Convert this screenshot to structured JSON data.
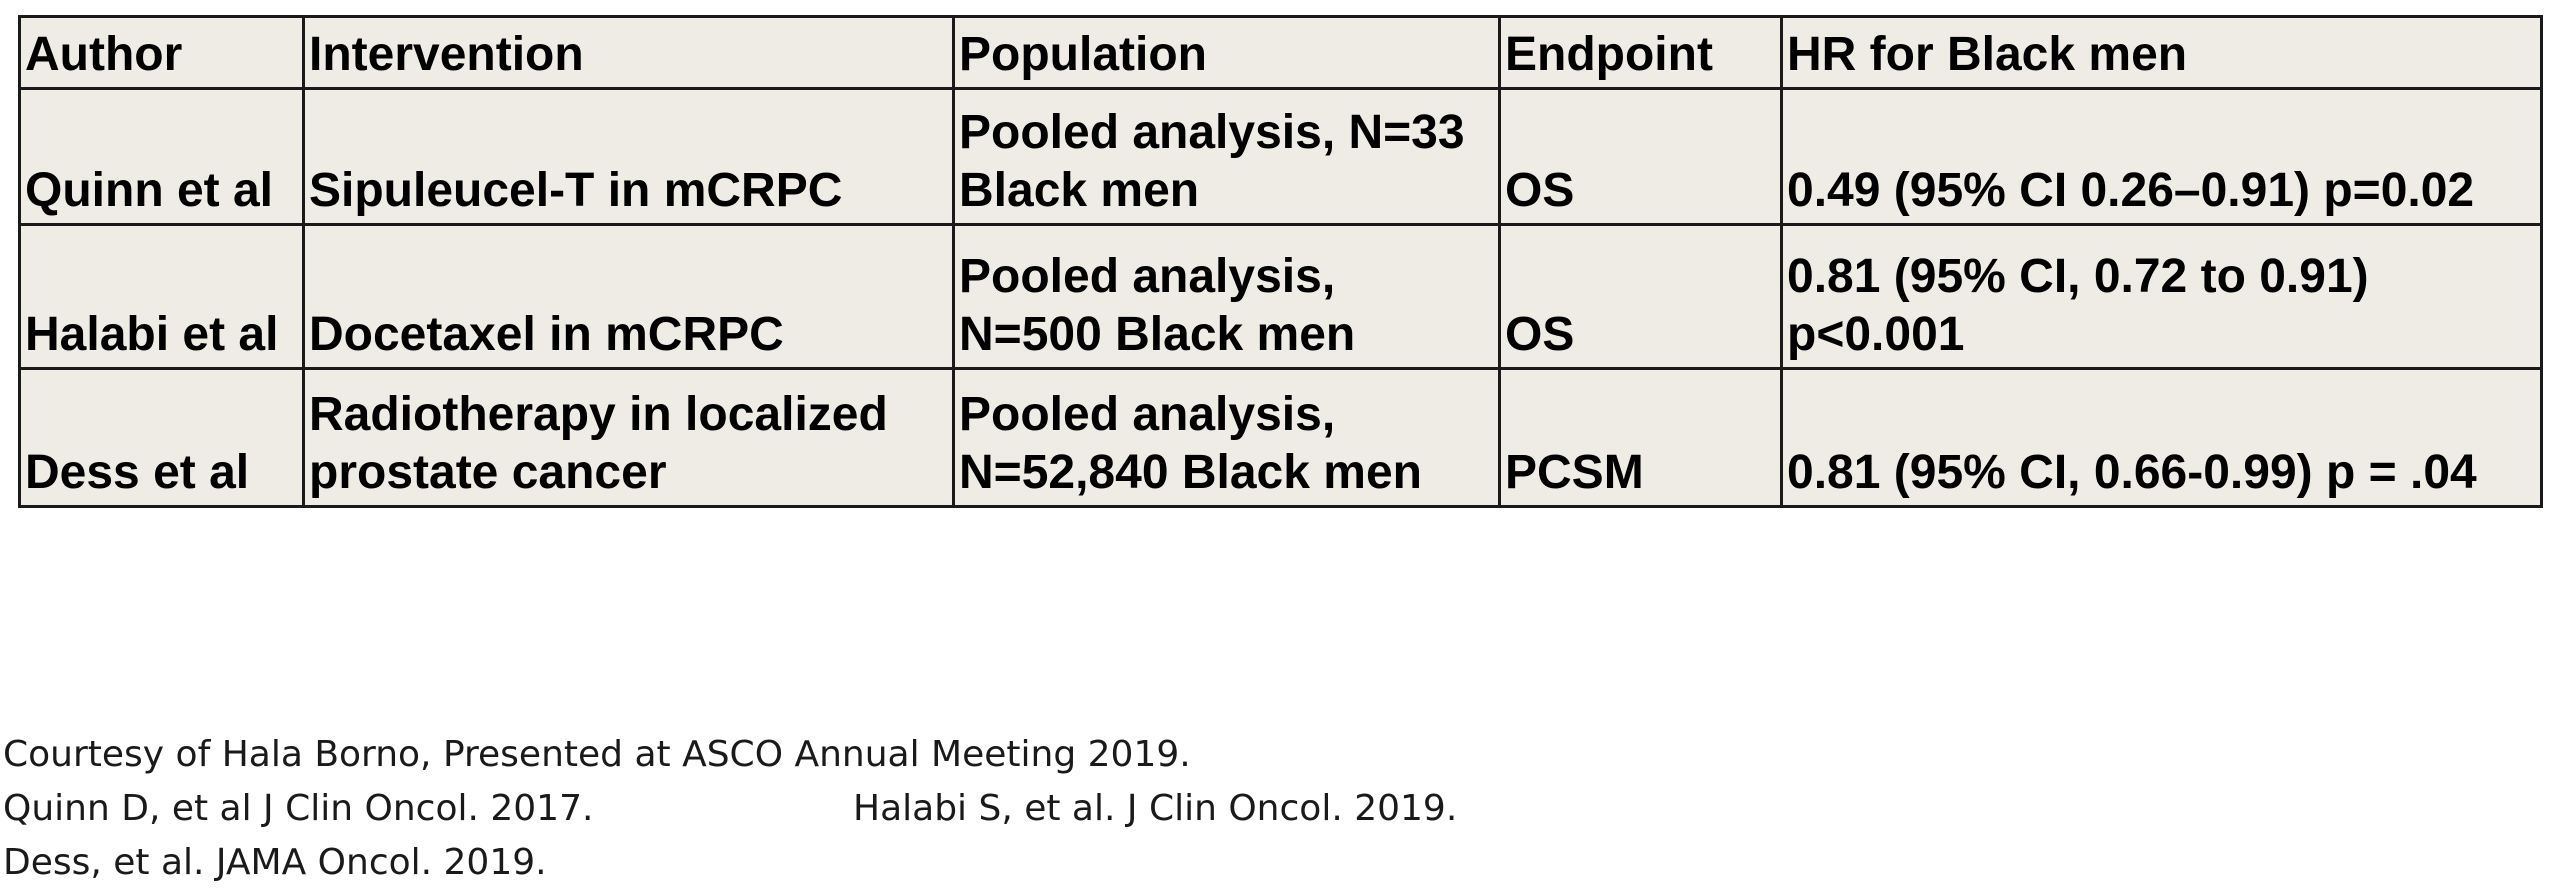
{
  "table": {
    "headers": [
      "Author",
      "Intervention",
      "Population",
      "Endpoint",
      "HR for Black men"
    ],
    "rows": [
      {
        "author": [
          "Quinn et al"
        ],
        "intervention": [
          "Sipuleucel-T in mCRPC"
        ],
        "population": [
          "Pooled analysis, N=33",
          "Black men"
        ],
        "endpoint": [
          "OS"
        ],
        "hr": [
          "0.49 (95% CI 0.26–0.91) p=0.02"
        ]
      },
      {
        "author": [
          "Halabi et al"
        ],
        "intervention": [
          "Docetaxel in mCRPC"
        ],
        "population": [
          "Pooled analysis,",
          "N=500 Black men"
        ],
        "endpoint": [
          "OS"
        ],
        "hr": [
          "0.81 (95% CI, 0.72 to 0.91)",
          "p<0.001"
        ]
      },
      {
        "author": [
          "Dess et al"
        ],
        "intervention": [
          "Radiotherapy in localized",
          "prostate cancer"
        ],
        "population": [
          "Pooled analysis,",
          "N=52,840 Black men"
        ],
        "endpoint": [
          "PCSM"
        ],
        "hr": [
          "0.81 (95% CI, 0.66-0.99) p = .04"
        ]
      }
    ]
  },
  "references": {
    "line1": "Courtesy of Hala Borno, Presented at ASCO Annual Meeting 2019.",
    "line2a": "Quinn D, et al J Clin Oncol. 2017.",
    "line2b": "Halabi S, et al. J Clin Oncol. 2019.",
    "line3": "Dess, et al. JAMA Oncol. 2019."
  },
  "colors": {
    "cell_background": "#eeece4",
    "border": "#1a1a1a",
    "text": "#000000"
  }
}
